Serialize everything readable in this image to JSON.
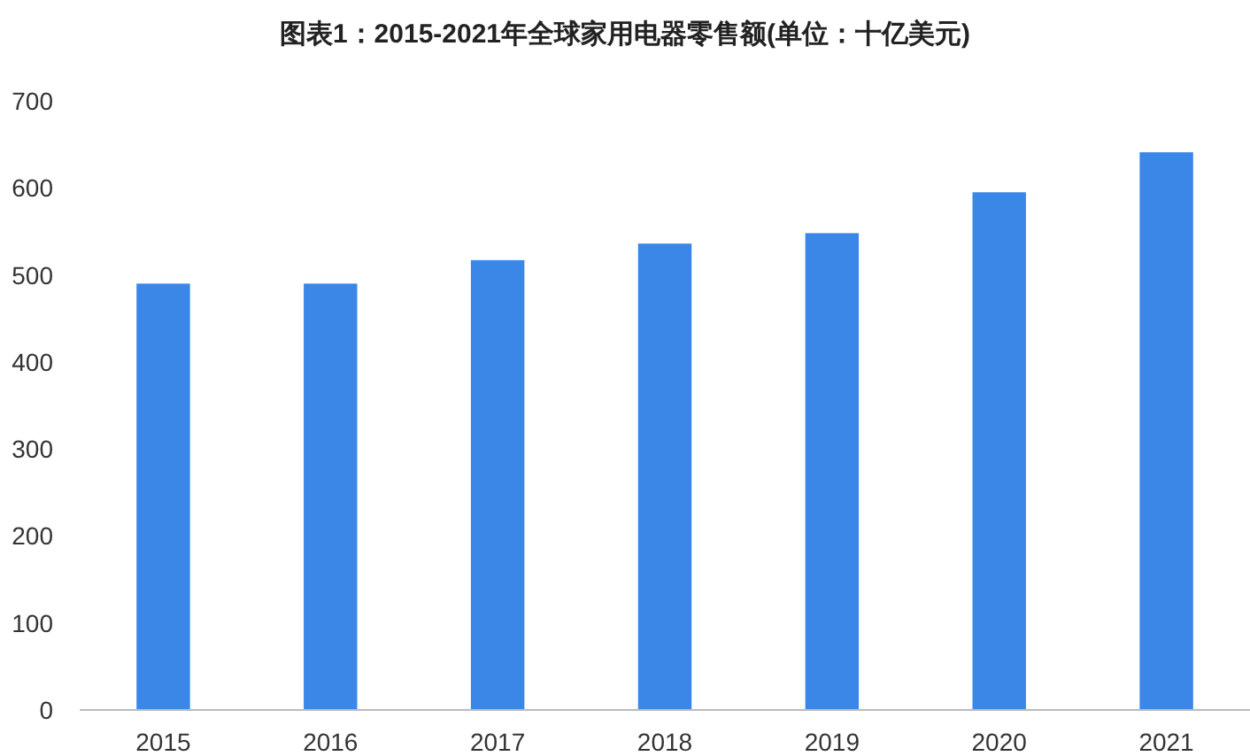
{
  "chart_data": {
    "type": "bar",
    "title": "图表1：2015-2021年全球家用电器零售额(单位：十亿美元)",
    "categories": [
      "2015",
      "2016",
      "2017",
      "2018",
      "2019",
      "2020",
      "2021"
    ],
    "values": [
      490,
      490,
      517,
      536,
      548,
      595,
      641
    ],
    "color": "#3a87e8",
    "ylim": [
      0,
      700
    ],
    "yticks": [
      0,
      100,
      200,
      300,
      400,
      500,
      600,
      700
    ],
    "grid": false
  }
}
